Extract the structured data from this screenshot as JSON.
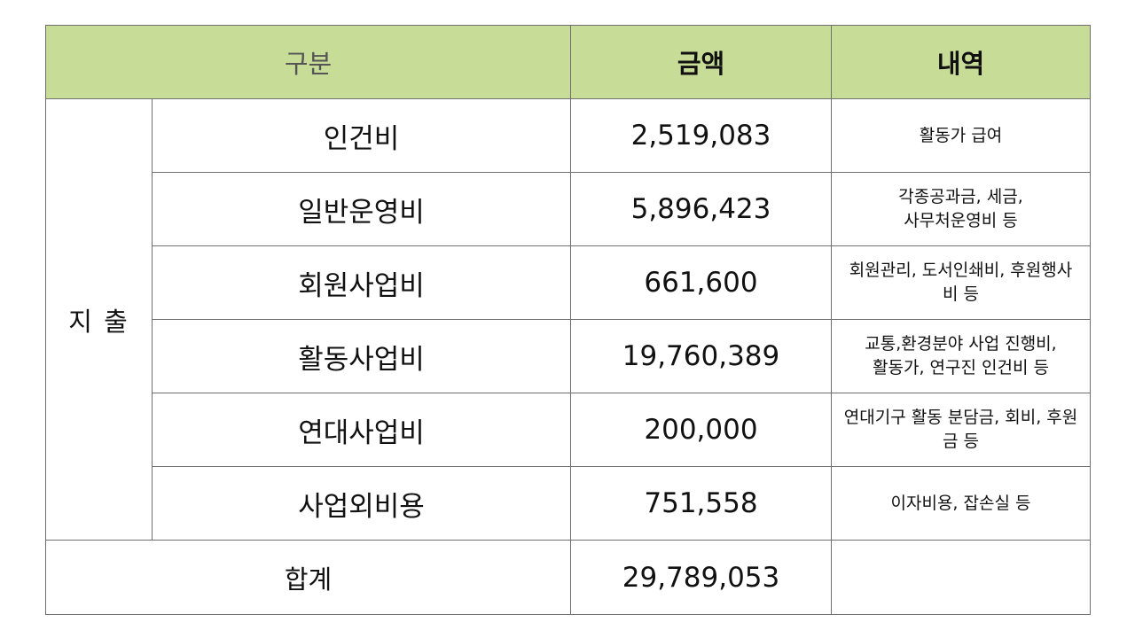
{
  "header": {
    "category": "구분",
    "amount": "금액",
    "detail": "내역"
  },
  "group_label": "지 출",
  "rows": [
    {
      "name": "인건비",
      "amount": "2,519,083",
      "detail": [
        "활동가 급여"
      ]
    },
    {
      "name": "일반운영비",
      "amount": "5,896,423",
      "detail": [
        "각종공과금, 세금,",
        "사무처운영비 등"
      ]
    },
    {
      "name": "회원사업비",
      "amount": "661,600",
      "detail": [
        "회원관리, 도서인쇄비, 후원행사",
        "비 등"
      ]
    },
    {
      "name": "활동사업비",
      "amount": "19,760,389",
      "detail": [
        "교통,환경분야 사업 진행비,",
        "활동가, 연구진 인건비 등"
      ]
    },
    {
      "name": "연대사업비",
      "amount": "200,000",
      "detail": [
        "연대기구 활동 분담금, 회비, 후원",
        "금 등"
      ]
    },
    {
      "name": "사업외비용",
      "amount": "751,558",
      "detail": [
        "이자비용, 잡손실 등"
      ]
    }
  ],
  "total": {
    "label": "합계",
    "amount": "29,789,053",
    "detail": ""
  }
}
